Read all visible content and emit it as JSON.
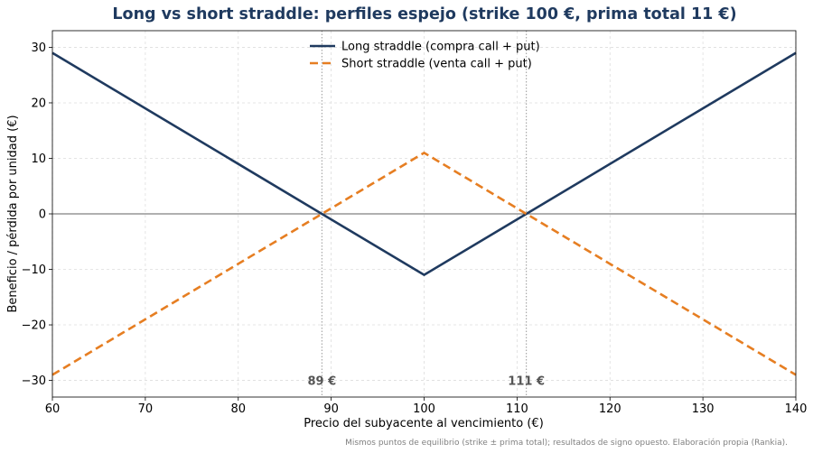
{
  "chart_data": {
    "type": "line",
    "title": "Long vs short straddle: perfiles espejo (strike 100 €, prima total 11 €)",
    "xlabel": "Precio del subyacente al vencimiento (€)",
    "ylabel": "Beneficio / pérdida por unidad (€)",
    "xlim": [
      60,
      140
    ],
    "ylim": [
      -33,
      33
    ],
    "xticks": [
      60,
      70,
      80,
      90,
      100,
      110,
      120,
      130,
      140
    ],
    "yticks": [
      -30,
      -20,
      -10,
      0,
      10,
      20,
      30
    ],
    "grid": true,
    "legend_position": "top-center",
    "series": [
      {
        "name": "Long straddle (compra call + put)",
        "color": "#1f3a5f",
        "style": "solid",
        "x": [
          60,
          100,
          140
        ],
        "y": [
          29,
          -11,
          29
        ]
      },
      {
        "name": "Short straddle (venta call + put)",
        "color": "#e67e22",
        "style": "dashed",
        "x": [
          60,
          100,
          140
        ],
        "y": [
          -29,
          11,
          -29
        ]
      }
    ],
    "reference_lines": [
      {
        "axis": "y",
        "value": 0
      },
      {
        "axis": "x",
        "value": 89,
        "label": "89 €"
      },
      {
        "axis": "x",
        "value": 111,
        "label": "111 €"
      }
    ],
    "footnote": "Mismos puntos de equilibrio (strike ± prima total); resultados de signo opuesto. Elaboración propia (Rankia).",
    "title_color": "#1f3a5f"
  }
}
